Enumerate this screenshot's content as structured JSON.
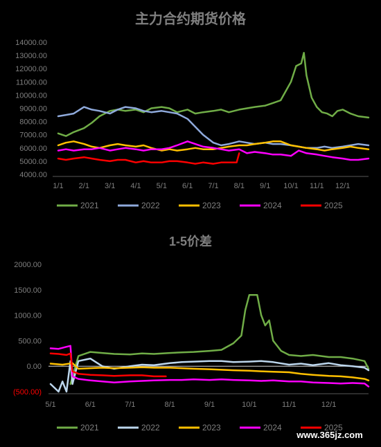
{
  "watermark": "www.365jz.com",
  "chart_data": [
    {
      "type": "line",
      "title": "主力合约期货价格",
      "x_ticks": [
        "1/1",
        "2/1",
        "3/1",
        "4/1",
        "5/1",
        "6/1",
        "7/1",
        "8/1",
        "9/1",
        "10/1",
        "11/1",
        "12/1"
      ],
      "y_ticks": [
        "4000.00",
        "5000.00",
        "6000.00",
        "7000.00",
        "8000.00",
        "9000.00",
        "10000.00",
        "11000.00",
        "12000.00",
        "13000.00",
        "14000.00"
      ],
      "ylim": [
        4000,
        14000
      ],
      "x_unit": "month of year (1 = Jan 1)",
      "xlim": [
        1,
        13
      ],
      "grid": false,
      "legend_position": "bottom",
      "series": [
        {
          "name": "2021",
          "color": "#70ad47",
          "x": [
            1,
            1.3,
            1.6,
            2,
            2.3,
            2.6,
            3,
            3.3,
            3.6,
            4,
            4.3,
            4.6,
            5,
            5.3,
            5.6,
            6,
            6.3,
            6.6,
            7,
            7.3,
            7.6,
            8,
            8.3,
            8.6,
            9,
            9.3,
            9.6,
            10,
            10.2,
            10.4,
            10.5,
            10.6,
            10.8,
            11,
            11.2,
            11.4,
            11.6,
            11.8,
            12,
            12.3,
            12.6,
            13
          ],
          "values": [
            7100,
            6900,
            7200,
            7500,
            7900,
            8400,
            8800,
            8900,
            8800,
            8900,
            8700,
            9000,
            9100,
            9000,
            8700,
            8900,
            8600,
            8700,
            8800,
            8900,
            8700,
            8900,
            9000,
            9100,
            9200,
            9400,
            9600,
            11000,
            12200,
            12400,
            13200,
            11500,
            9800,
            9100,
            8700,
            8600,
            8400,
            8800,
            8900,
            8600,
            8400,
            8300
          ]
        },
        {
          "name": "2022",
          "color": "#8faadc",
          "x": [
            1,
            1.3,
            1.6,
            2,
            2.3,
            2.6,
            3,
            3.3,
            3.6,
            4,
            4.3,
            4.6,
            5,
            5.3,
            5.6,
            6,
            6.3,
            6.6,
            7,
            7.3,
            7.6,
            8,
            8.3,
            8.6,
            9,
            9.3,
            9.6,
            10,
            10.3,
            10.6,
            11,
            11.3,
            11.6,
            12,
            12.3,
            12.6,
            13
          ],
          "values": [
            8400,
            8500,
            8600,
            9100,
            8900,
            8800,
            8600,
            8900,
            9100,
            9000,
            8800,
            8700,
            8800,
            8700,
            8600,
            8200,
            7600,
            7000,
            6400,
            6200,
            6300,
            6500,
            6400,
            6300,
            6400,
            6300,
            6300,
            6200,
            6100,
            6000,
            6000,
            6100,
            6000,
            6100,
            6200,
            6300,
            6200
          ]
        },
        {
          "name": "2023",
          "color": "#ffc000",
          "x": [
            1,
            1.3,
            1.6,
            2,
            2.3,
            2.6,
            3,
            3.3,
            3.6,
            4,
            4.3,
            4.6,
            5,
            5.3,
            5.6,
            6,
            6.3,
            6.6,
            7,
            7.3,
            7.6,
            8,
            8.3,
            8.6,
            9,
            9.3,
            9.6,
            10,
            10.3,
            10.6,
            11,
            11.3,
            11.6,
            12,
            12.3,
            12.6,
            13
          ],
          "values": [
            6200,
            6400,
            6500,
            6300,
            6100,
            6000,
            6200,
            6300,
            6200,
            6100,
            6200,
            6000,
            5800,
            5900,
            5800,
            5900,
            6000,
            5900,
            5900,
            6000,
            6100,
            6200,
            6200,
            6300,
            6400,
            6500,
            6500,
            6200,
            6100,
            6000,
            5900,
            5800,
            5900,
            6000,
            6100,
            6000,
            5900
          ]
        },
        {
          "name": "2024",
          "color": "#ff00ff",
          "x": [
            1,
            1.3,
            1.6,
            2,
            2.3,
            2.6,
            3,
            3.3,
            3.6,
            4,
            4.3,
            4.6,
            5,
            5.3,
            5.6,
            6,
            6.3,
            6.6,
            7,
            7.3,
            7.6,
            8,
            8.3,
            8.6,
            9,
            9.3,
            9.6,
            10,
            10.3,
            10.6,
            11,
            11.3,
            11.6,
            12,
            12.3,
            12.6,
            13
          ],
          "values": [
            5800,
            5900,
            5800,
            5900,
            5900,
            6000,
            5800,
            5900,
            6000,
            5900,
            5800,
            5900,
            5900,
            6000,
            6200,
            6500,
            6300,
            6100,
            6000,
            5900,
            5800,
            5900,
            5600,
            5700,
            5600,
            5500,
            5500,
            5400,
            5800,
            5600,
            5500,
            5400,
            5300,
            5200,
            5100,
            5100,
            5200
          ]
        },
        {
          "name": "2025",
          "color": "#ff0000",
          "x": [
            1,
            1.3,
            1.6,
            2,
            2.3,
            2.6,
            3,
            3.3,
            3.6,
            4,
            4.3,
            4.6,
            5,
            5.3,
            5.6,
            6,
            6.3,
            6.6,
            7,
            7.3,
            7.6,
            7.9,
            8.0
          ],
          "values": [
            5200,
            5100,
            5200,
            5300,
            5200,
            5100,
            5000,
            5100,
            5100,
            4900,
            5000,
            4900,
            4900,
            5000,
            5000,
            4900,
            4800,
            4900,
            4800,
            4900,
            4900,
            4900,
            5600
          ]
        }
      ]
    },
    {
      "type": "line",
      "title": "1-5价差",
      "x_ticks": [
        "5/1",
        "6/1",
        "7/1",
        "8/1",
        "9/1",
        "10/1",
        "11/1",
        "12/1"
      ],
      "y_ticks": [
        "(500.00)",
        "0.00",
        "500.00",
        "1000.00",
        "1500.00",
        "2000.00"
      ],
      "ylim": [
        -500,
        2000
      ],
      "x_unit": "month of year (5 = May 1)",
      "xlim": [
        5,
        13
      ],
      "grid": false,
      "legend_position": "bottom",
      "series": [
        {
          "name": "2021",
          "color": "#70ad47",
          "x": [
            5.5,
            5.7,
            6,
            6.3,
            6.6,
            7,
            7.3,
            7.6,
            8,
            8.3,
            8.6,
            9,
            9.3,
            9.6,
            9.8,
            9.9,
            10,
            10.2,
            10.3,
            10.4,
            10.5,
            10.6,
            10.8,
            11,
            11.3,
            11.6,
            12,
            12.3,
            12.6,
            12.9,
            13
          ],
          "values": [
            -350,
            200,
            280,
            260,
            240,
            230,
            250,
            240,
            260,
            270,
            280,
            300,
            320,
            450,
            600,
            1100,
            1400,
            1400,
            1000,
            800,
            900,
            500,
            300,
            220,
            200,
            220,
            180,
            180,
            150,
            100,
            -50
          ]
        },
        {
          "name": "2022",
          "color": "#bdd7ee",
          "x": [
            5,
            5.2,
            5.3,
            5.4,
            5.5,
            5.55,
            5.7,
            6,
            6.3,
            6.6,
            7,
            7.3,
            7.6,
            8,
            8.3,
            8.6,
            9,
            9.3,
            9.6,
            10,
            10.3,
            10.6,
            11,
            11.3,
            11.6,
            12,
            12.3,
            12.6,
            12.9,
            13
          ],
          "values": [
            -350,
            -500,
            -300,
            -500,
            100,
            -350,
            100,
            150,
            0,
            -50,
            0,
            30,
            20,
            60,
            80,
            90,
            100,
            100,
            80,
            90,
            100,
            80,
            30,
            50,
            20,
            60,
            20,
            0,
            -30,
            -80
          ]
        },
        {
          "name": "2023",
          "color": "#ffc000",
          "x": [
            5,
            5.3,
            5.55,
            5.7,
            6,
            6.3,
            6.6,
            7,
            7.3,
            7.6,
            8,
            8.3,
            8.6,
            9,
            9.3,
            9.6,
            10,
            10.3,
            10.6,
            11,
            11.3,
            11.6,
            12,
            12.3,
            12.6,
            12.9,
            13
          ],
          "values": [
            50,
            30,
            60,
            -50,
            -40,
            -30,
            -40,
            -30,
            -20,
            -30,
            -30,
            -40,
            -50,
            -60,
            -70,
            -80,
            -90,
            -100,
            -110,
            -120,
            -150,
            -170,
            -190,
            -200,
            -220,
            -250,
            -280
          ]
        },
        {
          "name": "2024",
          "color": "#ff00ff",
          "x": [
            5,
            5.2,
            5.4,
            5.5,
            5.55,
            5.7,
            6,
            6.3,
            6.6,
            7,
            7.3,
            7.6,
            8,
            8.3,
            8.6,
            9,
            9.3,
            9.6,
            10,
            10.3,
            10.6,
            11,
            11.3,
            11.6,
            12,
            12.3,
            12.6,
            12.9,
            13
          ],
          "values": [
            350,
            340,
            380,
            400,
            -200,
            -250,
            -280,
            -300,
            -320,
            -300,
            -290,
            -280,
            -270,
            -270,
            -260,
            -270,
            -260,
            -270,
            -280,
            -290,
            -280,
            -300,
            -300,
            -320,
            -330,
            -340,
            -330,
            -340,
            -400
          ]
        },
        {
          "name": "2025",
          "color": "#ff0000",
          "x": [
            5,
            5.2,
            5.4,
            5.5,
            5.55,
            5.7,
            6,
            6.3,
            6.6,
            7,
            7.3,
            7.6,
            7.9
          ],
          "values": [
            250,
            240,
            220,
            250,
            -100,
            -150,
            -170,
            -180,
            -190,
            -180,
            -180,
            -200,
            -200
          ]
        }
      ]
    }
  ]
}
